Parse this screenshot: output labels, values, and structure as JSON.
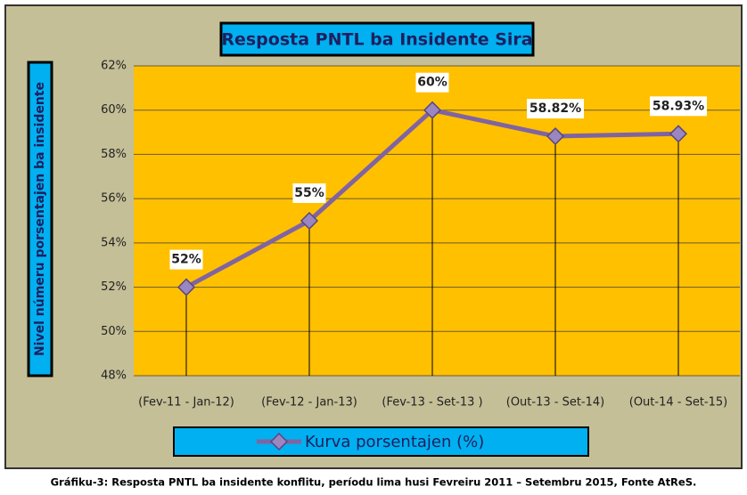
{
  "chart_data": {
    "type": "line",
    "title": "Resposta PNTL ba Insidente Sira",
    "y_label": "Nivel númeru porsentajen ba insidente",
    "caption": "Gráfiku-3: Resposta PNTL ba insidente konflitu, períodu lima husi Fevreiru 2011 – Setembru 2015, Fonte AtReS.",
    "categories": [
      "(Fev-11 - Jan-12)",
      "(Fev-12 - Jan-13)",
      "(Fev-13 - Set-13 )",
      "(Out-13 - Set-14)",
      "(Out-14 - Set-15)"
    ],
    "series": [
      {
        "name": "Kurva porsentajen (%)",
        "color": "#8064a2",
        "values": [
          52,
          55,
          60,
          58.82,
          58.93
        ],
        "value_labels": [
          "52%",
          "55%",
          "60%",
          "58.82%",
          "58.93%"
        ]
      }
    ],
    "ylim": [
      48,
      62
    ],
    "yticks": [
      {
        "value": 48,
        "label": "48%"
      },
      {
        "value": 50,
        "label": "50%"
      },
      {
        "value": 52,
        "label": "52%"
      },
      {
        "value": 54,
        "label": "54%"
      },
      {
        "value": 56,
        "label": "56%"
      },
      {
        "value": 58,
        "label": "58%"
      },
      {
        "value": 60,
        "label": "60%"
      },
      {
        "value": 62,
        "label": "62%"
      }
    ],
    "grid": true,
    "drop_lines": true,
    "legend": "bottom"
  }
}
